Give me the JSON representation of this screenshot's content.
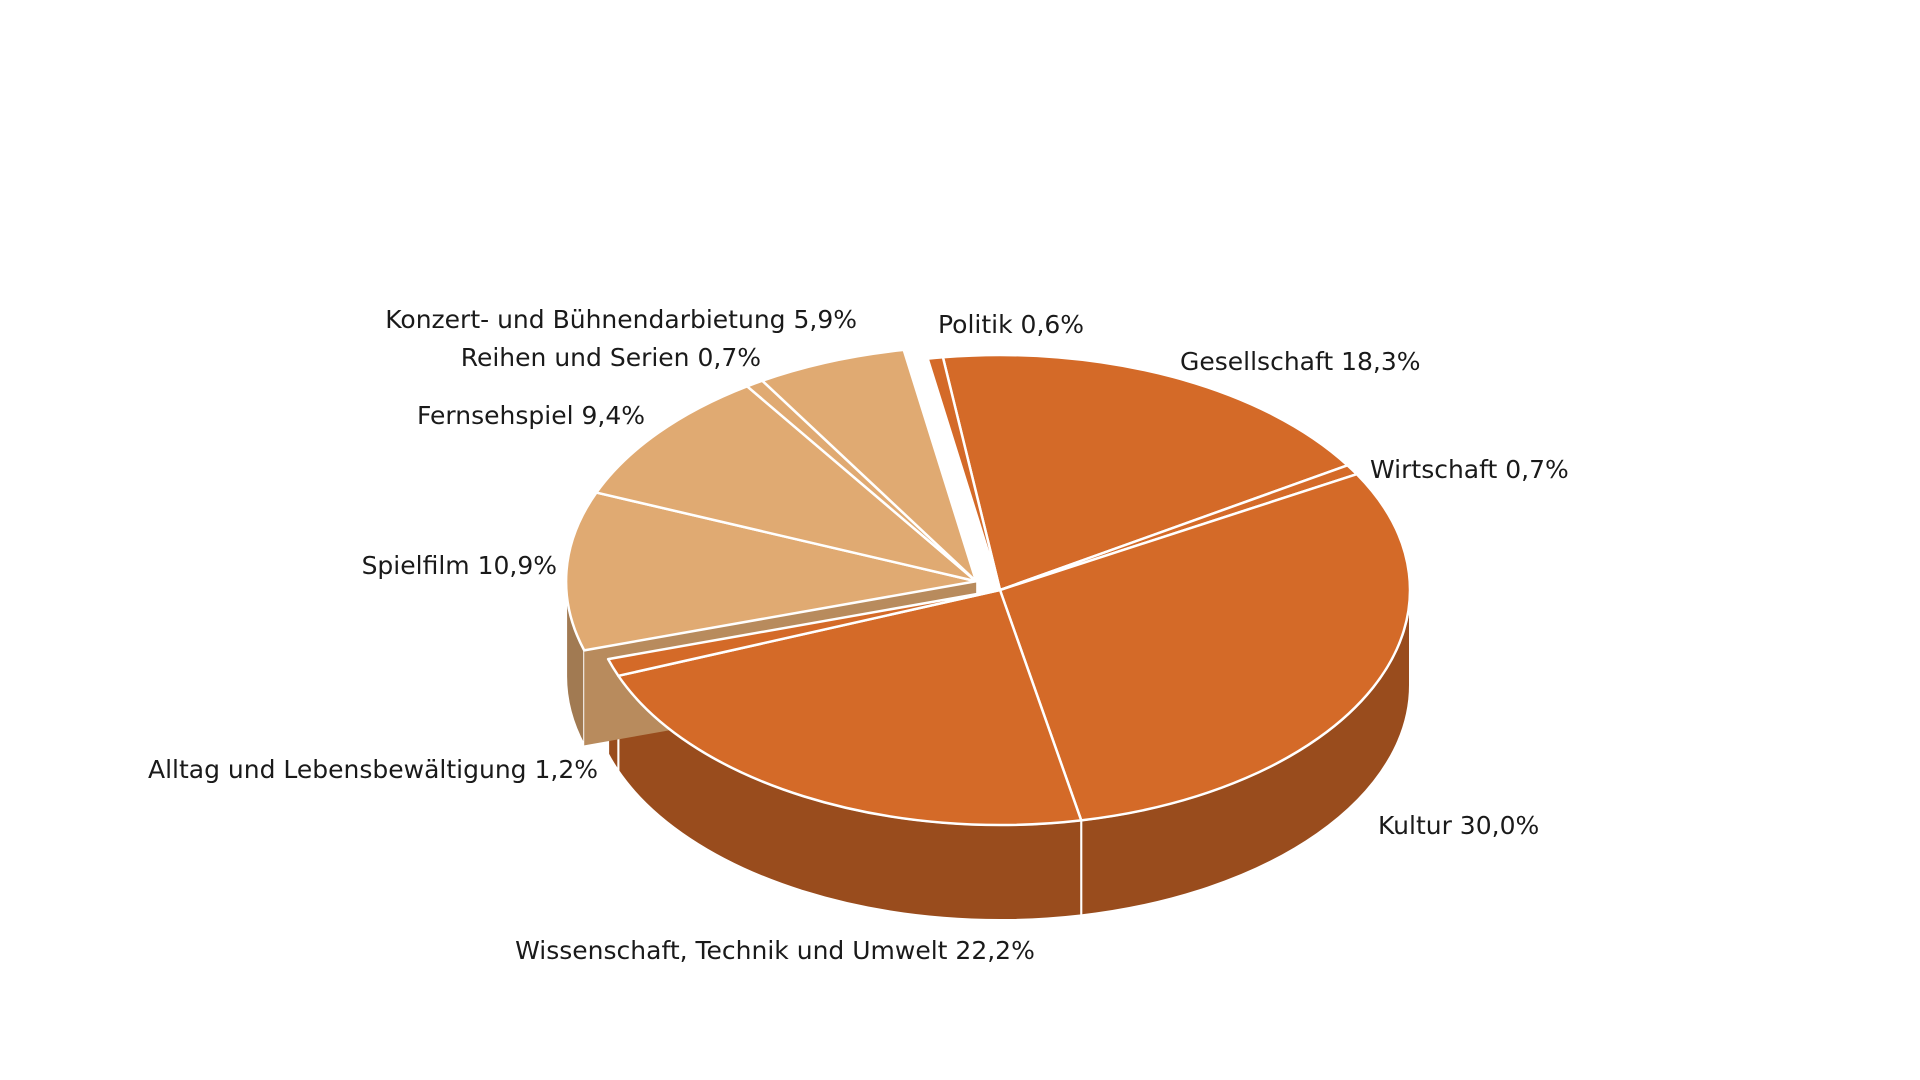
{
  "chart_data": {
    "type": "pie",
    "title": "",
    "style": "3d-exploded",
    "colors": {
      "group_a": "#d46a28",
      "group_b": "#e0aa72"
    },
    "slices": [
      {
        "label": "Gesellschaft",
        "value": 18.3,
        "value_text": "18,3%",
        "group": "a"
      },
      {
        "label": "Wirtschaft",
        "value": 0.7,
        "value_text": "0,7%",
        "group": "a"
      },
      {
        "label": "Kultur",
        "value": 30.0,
        "value_text": "30,0%",
        "group": "a"
      },
      {
        "label": "Wissenschaft, Technik und Umwelt",
        "value": 22.2,
        "value_text": "22,2%",
        "group": "a"
      },
      {
        "label": "Alltag und Lebensbewältigung",
        "value": 1.2,
        "value_text": "1,2%",
        "group": "a"
      },
      {
        "label": "Spielfilm",
        "value": 10.9,
        "value_text": "10,9%",
        "group": "b"
      },
      {
        "label": "Fernsehspiel",
        "value": 9.4,
        "value_text": "9,4%",
        "group": "b"
      },
      {
        "label": "Reihen und Serien",
        "value": 0.7,
        "value_text": "0,7%",
        "group": "b"
      },
      {
        "label": "Konzert- und Bühnendarbietung",
        "value": 5.9,
        "value_text": "5,9%",
        "group": "b"
      },
      {
        "label": "Politik",
        "value": 0.6,
        "value_text": "0,6%",
        "group": "a"
      }
    ]
  }
}
